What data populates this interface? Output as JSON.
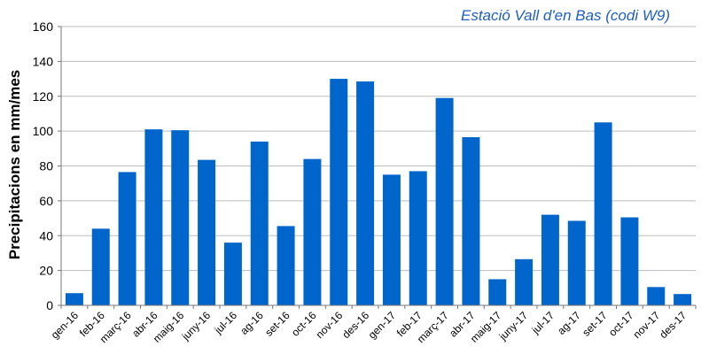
{
  "chart_data": {
    "type": "bar",
    "title": "Estació Vall d'en Bas (codi W9)",
    "xlabel": "",
    "ylabel": "Precipitacions en mm/mes",
    "ylim": [
      0,
      160
    ],
    "yticks": [
      0,
      20,
      40,
      60,
      80,
      100,
      120,
      140,
      160
    ],
    "grid": true,
    "bar_color": "#0066cc",
    "title_color": "#1f5fbf",
    "categories": [
      "gen-16",
      "feb-16",
      "març-16",
      "abr-16",
      "maig-16",
      "juny-16",
      "jul-16",
      "ag-16",
      "set-16",
      "oct-16",
      "nov-16",
      "des-16",
      "gen-17",
      "feb-17",
      "març-17",
      "abr-17",
      "maig-17",
      "juny-17",
      "jul-17",
      "ag-17",
      "set-17",
      "oct-17",
      "nov-17",
      "des-17"
    ],
    "values": [
      7,
      44,
      76.5,
      101,
      100.5,
      83.5,
      36,
      94,
      45.5,
      84,
      130,
      128.5,
      75,
      77,
      119,
      96.5,
      15,
      26.5,
      52,
      48.5,
      105,
      50.5,
      10.5,
      6.5
    ]
  }
}
